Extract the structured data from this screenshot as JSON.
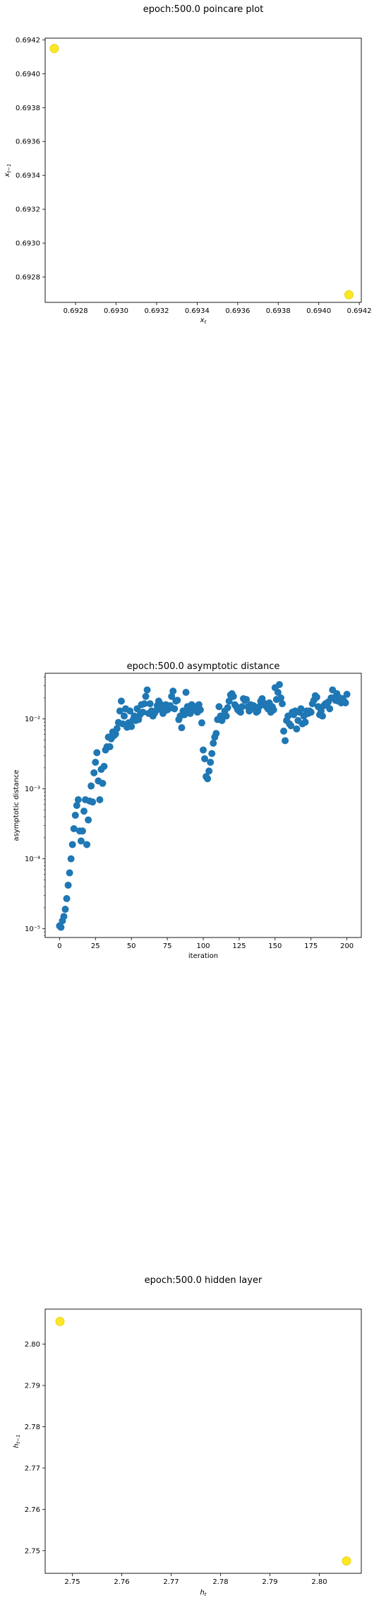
{
  "chart_data": [
    {
      "type": "scatter",
      "title": "epoch:500.0 poincare plot",
      "xlabel_main": "x",
      "xlabel_sub": "t",
      "ylabel_main": "x",
      "ylabel_sub": "t−1",
      "xlim": [
        0.69265,
        0.69421
      ],
      "ylim": [
        0.69265,
        0.69421
      ],
      "xticks": [
        "0.6928",
        "0.6930",
        "0.6932",
        "0.6934",
        "0.6936",
        "0.6938",
        "0.6940",
        "0.6942"
      ],
      "xtick_values": [
        0.6928,
        0.693,
        0.6932,
        0.6934,
        0.6936,
        0.6938,
        0.694,
        0.6942
      ],
      "yticks": [
        "0.6928",
        "0.6930",
        "0.6932",
        "0.6934",
        "0.6936",
        "0.6938",
        "0.6940",
        "0.6942"
      ],
      "ytick_values": [
        0.6928,
        0.693,
        0.6932,
        0.6934,
        0.6936,
        0.6938,
        0.694,
        0.6942
      ],
      "point_color": "#fde725",
      "edge_color": "#e8d31e",
      "points": [
        [
          0.692695,
          0.694149
        ],
        [
          0.694149,
          0.692695
        ]
      ],
      "grid": false
    },
    {
      "type": "scatter",
      "title": "epoch:500.0 asymptotic distance",
      "xlabel": "iteration",
      "ylabel": "asymptotic distance",
      "yscale": "log",
      "xlim": [
        -10,
        210
      ],
      "ylim": [
        7.5e-06,
        0.045
      ],
      "xticks": [
        "0",
        "25",
        "50",
        "75",
        "100",
        "125",
        "150",
        "175",
        "200"
      ],
      "xtick_values": [
        0,
        25,
        50,
        75,
        100,
        125,
        150,
        175,
        200
      ],
      "yticks": [
        "10⁻⁵",
        "10⁻⁴",
        "10⁻³",
        "10⁻²"
      ],
      "ytick_values": [
        1e-05,
        0.0001,
        0.001,
        0.01
      ],
      "point_color": "#1f77b4",
      "grid": false,
      "x": [
        0,
        1,
        2,
        3,
        4,
        5,
        6,
        7,
        8,
        9,
        10,
        11,
        12,
        13,
        14,
        15,
        16,
        17,
        18,
        19,
        20,
        21,
        22,
        23,
        24,
        25,
        26,
        27,
        28,
        29,
        30,
        31,
        32,
        33,
        34,
        35,
        36,
        37,
        38,
        39,
        40,
        41,
        42,
        43,
        44,
        45,
        46,
        47,
        48,
        49,
        50,
        51,
        52,
        53,
        54,
        55,
        56,
        57,
        58,
        59,
        60,
        61,
        62,
        63,
        64,
        65,
        66,
        67,
        68,
        69,
        70,
        71,
        72,
        73,
        74,
        75,
        76,
        77,
        78,
        79,
        80,
        81,
        82,
        83,
        84,
        85,
        86,
        87,
        88,
        89,
        90,
        91,
        92,
        93,
        94,
        95,
        96,
        97,
        98,
        99,
        100,
        101,
        102,
        103,
        104,
        105,
        106,
        107,
        108,
        109,
        110,
        111,
        112,
        113,
        114,
        115,
        116,
        117,
        118,
        119,
        120,
        121,
        122,
        123,
        124,
        125,
        126,
        127,
        128,
        129,
        130,
        131,
        132,
        133,
        134,
        135,
        136,
        137,
        138,
        139,
        140,
        141,
        142,
        143,
        144,
        145,
        146,
        147,
        148,
        149,
        150,
        151,
        152,
        153,
        154,
        155,
        156,
        157,
        158,
        159,
        160,
        161,
        162,
        163,
        164,
        165,
        166,
        167,
        168,
        169,
        170,
        171,
        172,
        173,
        174,
        175,
        176,
        177,
        178,
        179,
        180,
        181,
        182,
        183,
        184,
        185,
        186,
        187,
        188,
        189,
        190,
        191,
        192,
        193,
        194,
        195,
        196,
        197,
        198,
        199,
        200
      ],
      "y": [
        1.1e-05,
        1.05e-05,
        1.3e-05,
        1.5e-05,
        1.9e-05,
        2.7e-05,
        4.2e-05,
        6.3e-05,
        0.0001,
        0.00016,
        0.00027,
        0.00042,
        0.00058,
        0.0007,
        0.00025,
        0.00018,
        0.00025,
        0.00048,
        0.0007,
        0.00016,
        0.00036,
        0.00067,
        0.0011,
        0.00065,
        0.0017,
        0.0024,
        0.0033,
        0.0013,
        0.0007,
        0.0019,
        0.0012,
        0.0021,
        0.0036,
        0.004,
        0.0055,
        0.004,
        0.0052,
        0.0065,
        0.0058,
        0.0061,
        0.0073,
        0.0089,
        0.013,
        0.018,
        0.0085,
        0.011,
        0.014,
        0.0076,
        0.0088,
        0.013,
        0.0078,
        0.0096,
        0.011,
        0.0095,
        0.014,
        0.0098,
        0.0115,
        0.016,
        0.0125,
        0.0165,
        0.021,
        0.026,
        0.012,
        0.0165,
        0.013,
        0.011,
        0.012,
        0.013,
        0.0155,
        0.018,
        0.0165,
        0.0135,
        0.012,
        0.013,
        0.016,
        0.0135,
        0.014,
        0.0155,
        0.021,
        0.025,
        0.014,
        0.018,
        0.0185,
        0.0098,
        0.011,
        0.0075,
        0.013,
        0.0115,
        0.024,
        0.015,
        0.0135,
        0.012,
        0.016,
        0.0135,
        0.0145,
        0.015,
        0.0125,
        0.016,
        0.0135,
        0.0088,
        0.0036,
        0.0027,
        0.0015,
        0.0014,
        0.0018,
        0.0024,
        0.0032,
        0.0045,
        0.0055,
        0.0062,
        0.0098,
        0.015,
        0.011,
        0.0095,
        0.011,
        0.013,
        0.011,
        0.0145,
        0.018,
        0.022,
        0.023,
        0.021,
        0.016,
        0.015,
        0.0135,
        0.013,
        0.0125,
        0.015,
        0.0195,
        0.0185,
        0.019,
        0.015,
        0.013,
        0.016,
        0.0145,
        0.0155,
        0.014,
        0.0125,
        0.013,
        0.015,
        0.018,
        0.0195,
        0.016,
        0.0165,
        0.015,
        0.014,
        0.017,
        0.0125,
        0.015,
        0.0135,
        0.028,
        0.019,
        0.024,
        0.031,
        0.02,
        0.0165,
        0.0067,
        0.0049,
        0.0095,
        0.011,
        0.0085,
        0.008,
        0.0125,
        0.0115,
        0.013,
        0.0072,
        0.0095,
        0.0125,
        0.014,
        0.0085,
        0.011,
        0.009,
        0.013,
        0.012,
        0.013,
        0.0125,
        0.0165,
        0.0185,
        0.0215,
        0.0205,
        0.015,
        0.0115,
        0.013,
        0.011,
        0.0155,
        0.0165,
        0.016,
        0.0175,
        0.014,
        0.02,
        0.026,
        0.02,
        0.0185,
        0.023,
        0.018,
        0.02,
        0.017,
        0.0195,
        0.018,
        0.017,
        0.0225
      ]
    },
    {
      "type": "scatter",
      "title": "epoch:500.0 hidden layer",
      "xlabel_main": "h",
      "xlabel_sub": "t",
      "ylabel_main": "h",
      "ylabel_sub": "t−1",
      "xlim": [
        2.7445,
        2.8085
      ],
      "ylim": [
        2.7445,
        2.8085
      ],
      "xticks": [
        "2.75",
        "2.76",
        "2.77",
        "2.78",
        "2.79",
        "2.80"
      ],
      "xtick_values": [
        2.75,
        2.76,
        2.77,
        2.78,
        2.79,
        2.8
      ],
      "yticks": [
        "2.75",
        "2.76",
        "2.77",
        "2.78",
        "2.79",
        "2.80"
      ],
      "ytick_values": [
        2.75,
        2.76,
        2.77,
        2.78,
        2.79,
        2.8
      ],
      "point_color": "#fde725",
      "edge_color": "#e8d31e",
      "points": [
        [
          2.7475,
          2.8055
        ],
        [
          2.8055,
          2.7475
        ]
      ],
      "grid": false
    }
  ]
}
